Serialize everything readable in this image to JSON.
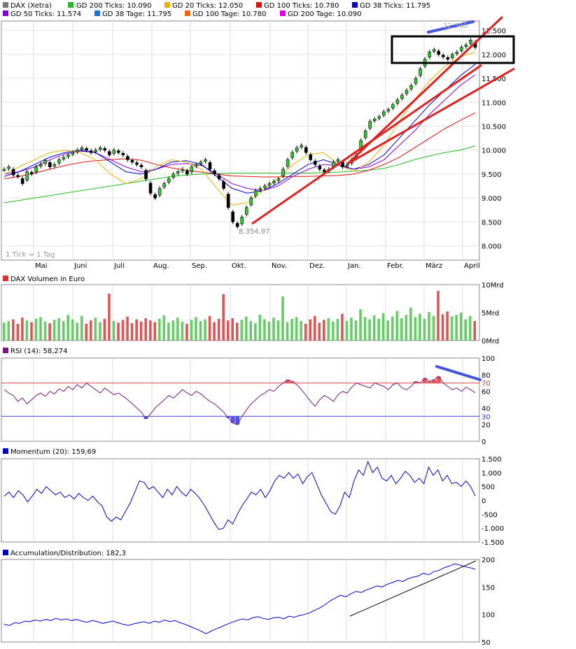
{
  "chart_data": [
    {
      "panel": "price",
      "type": "candlestick",
      "title": "DAX (Xetra)",
      "legend": [
        {
          "label": "GD 200 Ticks: 10.090",
          "color": "#22bb22"
        },
        {
          "label": "GD 20 Ticks: 12.050",
          "color": "#f0b000"
        },
        {
          "label": "GD 100 Ticks: 10.780",
          "color": "#dd1111"
        },
        {
          "label": "GD 38 Ticks: 11.795",
          "color": "#0000cc"
        },
        {
          "label": "GD 50 Ticks: 11.574",
          "color": "#8800cc"
        },
        {
          "label": "GD 38 Tage: 11.795",
          "color": "#1e6fd9"
        },
        {
          "label": "GD 100 Tage: 10.780",
          "color": "#ff6600"
        },
        {
          "label": "GD 200 Tage: 10.090",
          "color": "#dd00dd"
        }
      ],
      "x_labels": [
        "Mai",
        "Juni",
        "Juli",
        "Aug.",
        "Sep.",
        "Okt.",
        "Nov.",
        "Dez.",
        "Jan.",
        "Febr.",
        "März",
        "April"
      ],
      "y_labels": [
        "12.500",
        "12.000",
        "11.500",
        "11.000",
        "10.500",
        "10.000",
        "9.500",
        "9.000",
        "8.500",
        "8.000"
      ],
      "ylim": [
        7700,
        12700
      ],
      "low_label": "8.354,97",
      "high_label": "12.390",
      "tick_note": "1 Tick = 1 Tag",
      "close": [
        9600,
        9650,
        9480,
        9450,
        9300,
        9550,
        9500,
        9650,
        9700,
        9780,
        9650,
        9700,
        9800,
        9850,
        9900,
        9950,
        10000,
        10050,
        10000,
        9950,
        10000,
        10050,
        10000,
        9900,
        10000,
        9950,
        9900,
        9800,
        9750,
        9700,
        9650,
        9400,
        9100,
        9000,
        9200,
        9300,
        9400,
        9500,
        9550,
        9600,
        9500,
        9650,
        9700,
        9750,
        9800,
        9600,
        9500,
        9400,
        9200,
        8800,
        8500,
        8400,
        8600,
        8800,
        9000,
        9150,
        9200,
        9250,
        9300,
        9350,
        9400,
        9600,
        9800,
        9950,
        10050,
        10100,
        9950,
        9800,
        9700,
        9600,
        9550,
        9600,
        9750,
        9800,
        9650,
        9700,
        9800,
        9900,
        10200,
        10400,
        10600,
        10650,
        10700,
        10800,
        10850,
        10950,
        11050,
        11150,
        11250,
        11350,
        11500,
        11700,
        11900,
        12050,
        12100,
        12000,
        11950,
        11900,
        12000,
        12050,
        12150,
        12200,
        12300,
        12150
      ],
      "series": [
        {
          "name": "GD 200",
          "color": "#22bb22",
          "values": [
            8900,
            8950,
            9000,
            9050,
            9100,
            9150,
            9200,
            9250,
            9300,
            9350,
            9400,
            9450,
            9480,
            9500,
            9510,
            9520,
            9520,
            9520,
            9520,
            9520,
            9520,
            9530,
            9540,
            9560,
            9580,
            9620,
            9700,
            9800,
            9880,
            9950,
            10000,
            10090
          ]
        },
        {
          "name": "GD 100",
          "color": "#dd1111",
          "values": [
            9400,
            9450,
            9520,
            9600,
            9680,
            9740,
            9780,
            9800,
            9820,
            9790,
            9700,
            9630,
            9580,
            9540,
            9500,
            9460,
            9450,
            9440,
            9440,
            9450,
            9450,
            9460,
            9470,
            9500,
            9580,
            9700,
            9850,
            10050,
            10250,
            10450,
            10620,
            10780
          ]
        },
        {
          "name": "GD 50",
          "color": "#8800cc",
          "values": [
            9500,
            9550,
            9650,
            9800,
            9920,
            9980,
            9950,
            9800,
            9650,
            9550,
            9600,
            9700,
            9720,
            9680,
            9500,
            9300,
            9200,
            9150,
            9250,
            9450,
            9600,
            9700,
            9680,
            9600,
            9650,
            9800,
            10100,
            10400,
            10750,
            11050,
            11350,
            11574
          ]
        },
        {
          "name": "GD 38",
          "color": "#0000cc",
          "values": [
            9450,
            9550,
            9700,
            9850,
            9950,
            10000,
            9950,
            9750,
            9550,
            9500,
            9600,
            9750,
            9780,
            9700,
            9450,
            9200,
            9100,
            9150,
            9300,
            9500,
            9700,
            9800,
            9700,
            9600,
            9700,
            9900,
            10250,
            10600,
            10950,
            11250,
            11550,
            11795
          ]
        },
        {
          "name": "GD 20",
          "color": "#f0b000",
          "values": [
            9500,
            9650,
            9800,
            9950,
            10000,
            9950,
            9800,
            9500,
            9300,
            9400,
            9650,
            9800,
            9750,
            9600,
            9200,
            8850,
            8900,
            9150,
            9400,
            9700,
            9900,
            9950,
            9700,
            9550,
            9750,
            10100,
            10600,
            11050,
            11450,
            11750,
            11950,
            12050
          ]
        }
      ]
    },
    {
      "panel": "volume",
      "type": "bar",
      "title": "DAX Volumen in Euro",
      "y_labels": [
        "10Mrd",
        "5Mrd",
        "0Mrd"
      ],
      "ylim": [
        0,
        10
      ],
      "values": [
        3.2,
        3.5,
        3.8,
        3.0,
        4.1,
        3.6,
        3.3,
        3.9,
        4.2,
        3.4,
        3.1,
        3.7,
        4.0,
        3.5,
        4.6,
        3.8,
        3.2,
        4.4,
        3.0,
        3.6,
        4.1,
        3.3,
        3.9,
        8.4,
        3.5,
        3.2,
        3.7,
        4.3,
        3.1,
        3.8,
        3.4,
        4.0,
        3.6,
        3.3,
        3.9,
        4.5,
        3.2,
        3.6,
        4.1,
        3.4,
        3.0,
        3.7,
        4.2,
        3.5,
        3.8,
        4.4,
        3.3,
        3.9,
        8.3,
        3.6,
        4.0,
        3.2,
        3.7,
        4.3,
        3.5,
        3.1,
        4.6,
        3.8,
        3.4,
        4.1,
        3.6,
        7.9,
        3.3,
        3.9,
        4.2,
        3.5,
        3.0,
        3.8,
        4.4,
        3.2,
        3.7,
        4.0,
        3.4,
        3.9,
        4.8,
        3.5,
        4.1,
        3.6,
        5.6,
        4.2,
        3.8,
        4.5,
        3.9,
        4.9,
        3.6,
        4.3,
        5.3,
        4.0,
        4.6,
        5.9,
        4.2,
        4.8,
        3.9,
        5.1,
        4.4,
        8.9,
        4.7,
        5.2,
        4.3,
        4.6,
        5.0,
        3.8,
        4.4,
        3.5
      ]
    },
    {
      "panel": "rsi",
      "type": "line",
      "title": "RSI (14): 58,274",
      "y_labels": [
        "100",
        "80",
        "70",
        "60",
        "40",
        "30",
        "20",
        "0"
      ],
      "ylim": [
        0,
        100
      ],
      "upper": 70,
      "lower": 30,
      "values": [
        62,
        58,
        55,
        48,
        52,
        45,
        50,
        55,
        58,
        54,
        60,
        57,
        63,
        60,
        66,
        62,
        68,
        64,
        70,
        66,
        62,
        58,
        64,
        60,
        56,
        58,
        54,
        50,
        45,
        40,
        35,
        27,
        33,
        40,
        45,
        50,
        55,
        52,
        57,
        62,
        58,
        55,
        60,
        57,
        52,
        48,
        45,
        40,
        35,
        28,
        22,
        20,
        30,
        38,
        45,
        50,
        55,
        58,
        62,
        60,
        66,
        70,
        74,
        72,
        68,
        62,
        55,
        48,
        42,
        50,
        55,
        52,
        48,
        56,
        60,
        58,
        65,
        70,
        68,
        66,
        64,
        70,
        68,
        66,
        62,
        68,
        70,
        64,
        62,
        66,
        72,
        70,
        76,
        72,
        74,
        78,
        70,
        66,
        62,
        64,
        60,
        65,
        62,
        58.27
      ]
    },
    {
      "panel": "momentum",
      "type": "line",
      "title": "Momentum (20): 159,69",
      "y_labels": [
        "1.500",
        "1.000",
        "500",
        "0",
        "-500",
        "-1.000",
        "-1.500"
      ],
      "ylim": [
        -1500,
        1500
      ],
      "values": [
        150,
        300,
        100,
        350,
        200,
        -50,
        150,
        400,
        250,
        500,
        350,
        200,
        300,
        100,
        200,
        50,
        250,
        100,
        0,
        150,
        -50,
        -200,
        -600,
        -750,
        -600,
        -700,
        -400,
        -100,
        300,
        700,
        650,
        400,
        500,
        300,
        100,
        400,
        200,
        500,
        300,
        150,
        400,
        250,
        50,
        -200,
        -500,
        -800,
        -1050,
        -1000,
        -700,
        -850,
        -500,
        -200,
        50,
        300,
        200,
        400,
        100,
        350,
        700,
        900,
        800,
        1000,
        800,
        950,
        600,
        850,
        1000,
        600,
        200,
        -100,
        -400,
        -500,
        -200,
        300,
        100,
        700,
        1100,
        900,
        1400,
        1000,
        1200,
        800,
        700,
        900,
        600,
        800,
        1050,
        900,
        650,
        800,
        600,
        1200,
        900,
        1100,
        700,
        900,
        600,
        650,
        500,
        700,
        500,
        159.69
      ]
    },
    {
      "panel": "ad",
      "type": "line",
      "title": "Accumulation/Distribution: 182,3",
      "y_labels": [
        "200",
        "150",
        "100",
        "50"
      ],
      "ylim": [
        50,
        200
      ],
      "values": [
        82,
        80,
        85,
        84,
        88,
        87,
        90,
        88,
        91,
        89,
        93,
        90,
        92,
        89,
        91,
        88,
        86,
        89,
        87,
        84,
        86,
        88,
        85,
        82,
        80,
        83,
        85,
        87,
        84,
        88,
        86,
        90,
        87,
        89,
        85,
        82,
        78,
        74,
        70,
        65,
        70,
        74,
        78,
        82,
        86,
        89,
        92,
        90,
        94,
        96,
        93,
        91,
        94,
        95,
        92,
        97,
        95,
        98,
        100,
        103,
        108,
        112,
        118,
        125,
        130,
        135,
        132,
        138,
        142,
        140,
        145,
        148,
        152,
        150,
        155,
        158,
        162,
        160,
        165,
        168,
        170,
        175,
        172,
        178,
        180,
        185,
        188,
        192,
        190,
        187,
        185,
        182.3
      ]
    }
  ]
}
